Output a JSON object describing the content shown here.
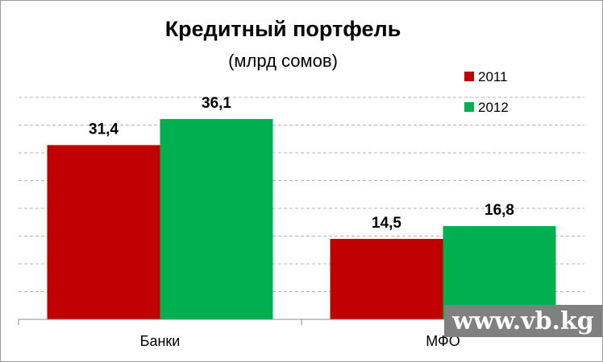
{
  "chart_data": {
    "type": "bar",
    "title": "Кредитный портфель",
    "subtitle": "(млрд сомов)",
    "categories": [
      "Банки",
      "МФО"
    ],
    "series": [
      {
        "name": "2011",
        "color": "#c00000",
        "values": [
          31.4,
          14.5
        ],
        "labels": [
          "31,4",
          "14,5"
        ]
      },
      {
        "name": "2012",
        "color": "#00b050",
        "values": [
          36.1,
          16.8
        ],
        "labels": [
          "36,1",
          "16,8"
        ]
      }
    ],
    "ylim": [
      0,
      40
    ],
    "grid": true,
    "legend_position": "top-right"
  },
  "watermark": "www.vb.kg"
}
